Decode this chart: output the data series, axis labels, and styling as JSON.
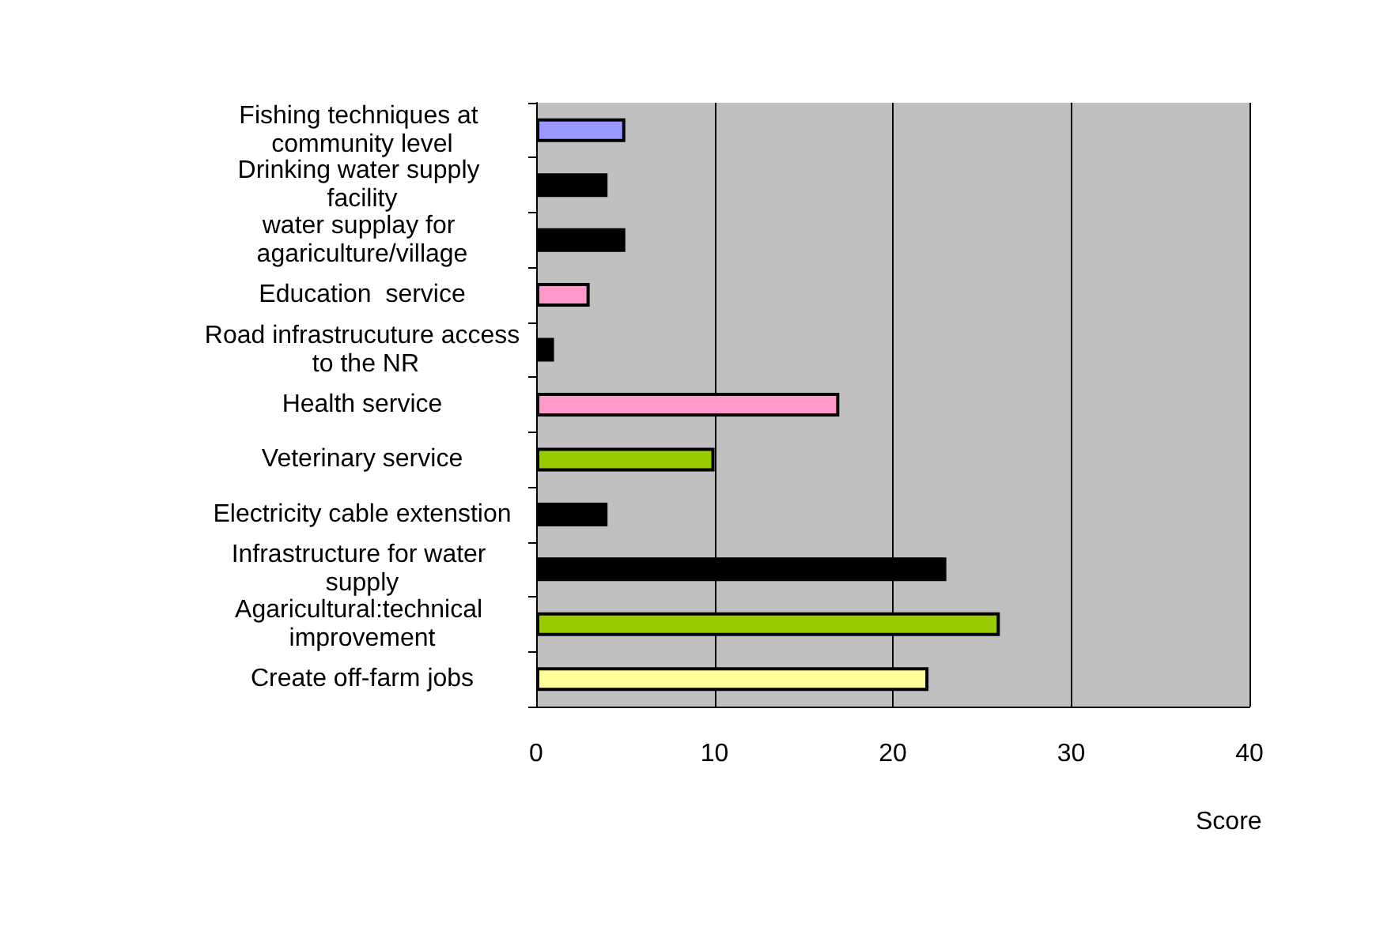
{
  "chart_data": {
    "type": "bar",
    "orientation": "horizontal",
    "xlabel": "Score",
    "categories": [
      "Fishing techniques at community level",
      "Drinking water supply facility",
      "water supplay for agariculture/village",
      "Education  service",
      "Road infrastrucuture access to the NR",
      "Health service",
      "Veterinary service",
      "Electricity cable extenstion",
      "Infrastructure for water supply",
      "Agaricultural:technical improvement",
      "Create off-farm jobs"
    ],
    "values": [
      5,
      4,
      5,
      3,
      1,
      17,
      10,
      4,
      23,
      26,
      22
    ],
    "colors": [
      "#9999ff",
      "#000000",
      "#000000",
      "#ff99cc",
      "#000000",
      "#ff99cc",
      "#99cc00",
      "#000000",
      "#000000",
      "#99cc00",
      "#ffff99"
    ],
    "xlim": [
      0,
      40
    ],
    "xticks": [
      0,
      10,
      20,
      30,
      40
    ],
    "grid": "x"
  }
}
